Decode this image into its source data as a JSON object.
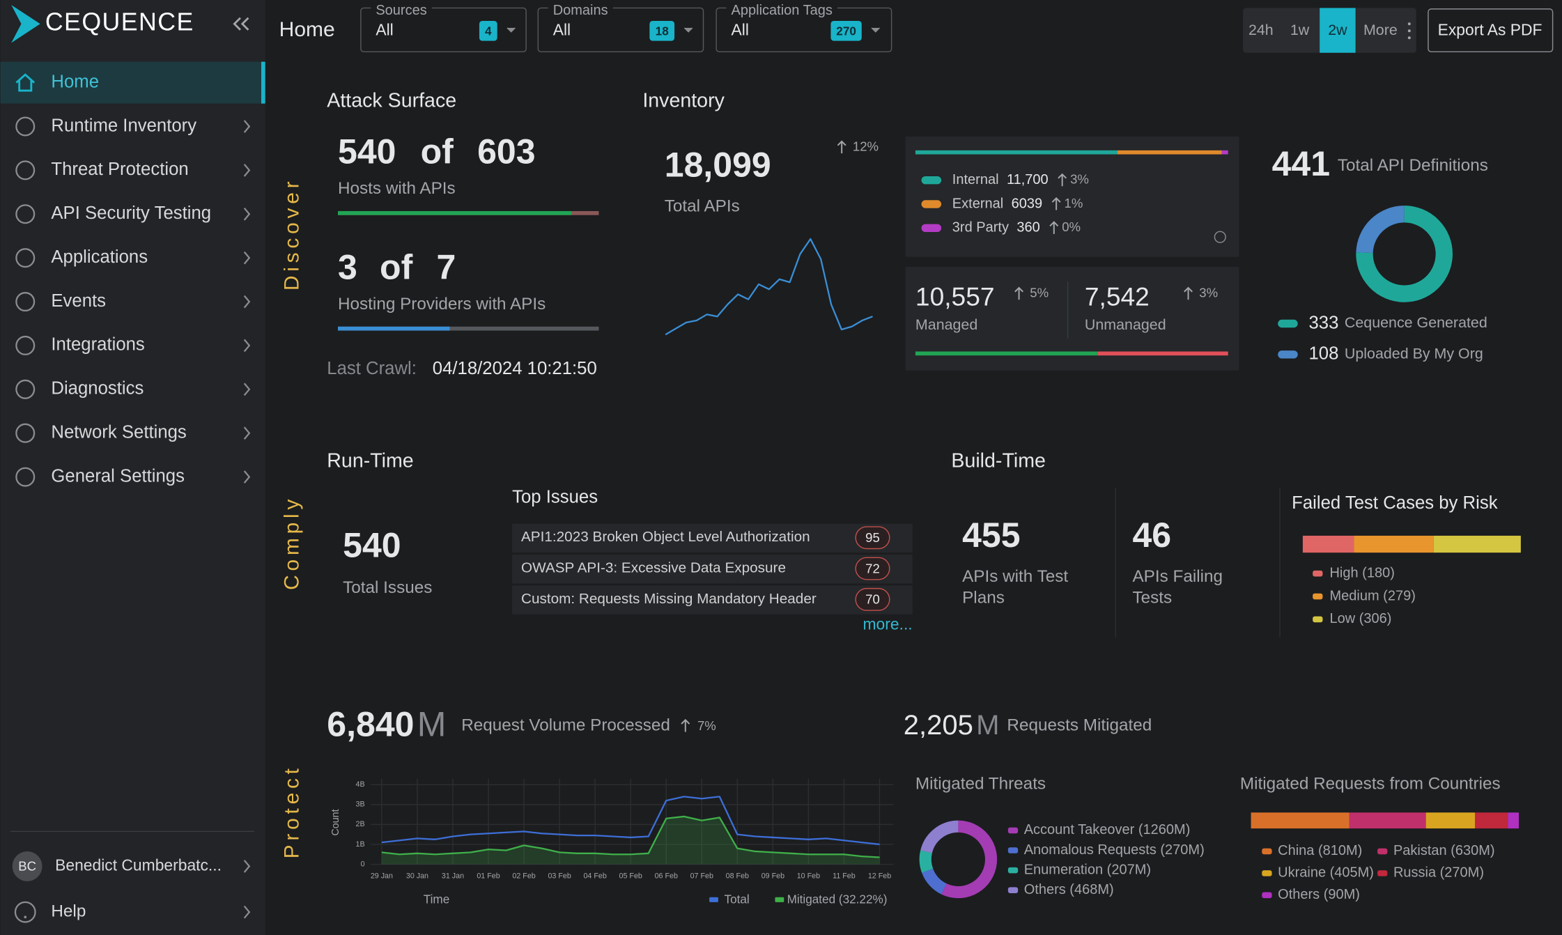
{
  "sidebar": {
    "brand": "CEQUENCE",
    "nav": [
      "Home",
      "Runtime Inventory",
      "Threat Protection",
      "API Security Testing",
      "Applications",
      "Events",
      "Integrations",
      "Diagnostics",
      "Network Settings",
      "General Settings"
    ],
    "user": {
      "initials": "BC",
      "name": "Benedict Cumberbatc..."
    },
    "help": "Help"
  },
  "header": {
    "title": "Home",
    "filters": [
      {
        "label": "Sources",
        "value": "All",
        "count": 4
      },
      {
        "label": "Domains",
        "value": "All",
        "count": 18
      },
      {
        "label": "Application Tags",
        "value": "All",
        "count": 270
      }
    ],
    "ranges": [
      "24h",
      "1w",
      "2w",
      "More"
    ],
    "active_range": 2,
    "export": "Export As PDF"
  },
  "sections": [
    "Discover",
    "Comply",
    "Protect"
  ],
  "attack_surface": {
    "title": "Attack Surface",
    "hosts": 540,
    "of": "of",
    "hosts_total": 603,
    "hosts_label": "Hosts with APIs",
    "providers": 3,
    "providers_total": 7,
    "providers_label": "Hosting Providers with APIs",
    "last_crawl_label": "Last Crawl:",
    "last_crawl": "04/18/2024 10:21:50"
  },
  "inventory": {
    "title": "Inventory",
    "total": "18,099",
    "total_label": "Total APIs",
    "change": "12%"
  },
  "runtime": {
    "title": "Run-Time",
    "issues": 540,
    "issues_label": "Total Issues",
    "top_title": "Top Issues",
    "top_issues": [
      {
        "name": "API1:2023 Broken Object Level Authorization",
        "count": 95
      },
      {
        "name": "OWASP API-3: Excessive Data Exposure",
        "count": 72
      },
      {
        "name": "Custom: Requests Missing Mandatory Header",
        "count": 70
      }
    ],
    "more": "more..."
  },
  "buildtime": {
    "title": "Build-Time",
    "test_plans": 455,
    "test_plans_label": "APIs with Test Plans",
    "failing": 46,
    "failing_label": "APIs Failing Tests"
  },
  "protect": {
    "volume": "6,840",
    "volume_unit": "M",
    "volume_label": "Request Volume Processed",
    "volume_change": "7%",
    "mitigated": "2,205",
    "mitigated_unit": "M",
    "mitigated_label": "Requests Mitigated"
  },
  "chart_data": [
    {
      "type": "line",
      "color": "#3a8fd6",
      "values": [
        0,
        6,
        12,
        14,
        20,
        18,
        30,
        40,
        35,
        50,
        45,
        55,
        52,
        80,
        95,
        75,
        30,
        5,
        8,
        14,
        18
      ]
    },
    {
      "type": "bar",
      "categories": [
        "Internal",
        "External",
        "3rd Party"
      ],
      "values": [
        11700,
        6039,
        360
      ],
      "value_labels": [
        "11,700",
        "6039",
        "360"
      ],
      "changes": [
        "3%",
        "1%",
        "0%"
      ],
      "colors": [
        "#1fa89a",
        "#e08a2c",
        "#b23cc4"
      ]
    },
    {
      "type": "bar",
      "categories": [
        "Managed",
        "Unmanaged"
      ],
      "values": [
        10557,
        7542
      ],
      "value_labels": [
        "10,557",
        "7,542"
      ],
      "changes": [
        "5%",
        "3%"
      ],
      "colors": [
        "#21a454",
        "#e0505a"
      ]
    },
    {
      "type": "donut",
      "title": "Total API Definitions",
      "total": 441,
      "categories": [
        "Cequence Generated",
        "Uploaded By My Org"
      ],
      "values": [
        333,
        108
      ],
      "colors": [
        "#1fa89a",
        "#4a86c8"
      ]
    },
    {
      "type": "bar",
      "title": "Failed Test Cases by Risk",
      "categories": [
        "High (180)",
        "Medium (279)",
        "Low (306)"
      ],
      "values": [
        180,
        279,
        306
      ],
      "colors": [
        "#e06666",
        "#e8952e",
        "#d4c640"
      ]
    },
    {
      "type": "line",
      "ylabel": "Count",
      "xlabel": "Time",
      "categories": [
        "29 Jan",
        null,
        "30 Jan",
        null,
        "31 Jan",
        null,
        "01 Feb",
        null,
        "02 Feb",
        null,
        "03 Feb",
        null,
        "04 Feb",
        null,
        "05 Feb",
        null,
        "06 Feb",
        null,
        "07 Feb",
        null,
        "08 Feb",
        null,
        "09 Feb",
        null,
        "10 Feb",
        null,
        "11 Feb",
        null,
        "12 Feb"
      ],
      "ylim": [
        0,
        4000000000
      ],
      "yticks": [
        0,
        {
          "value": 1000000000,
          "label": "1B"
        },
        {
          "value": 2000000000,
          "label": "2B"
        },
        {
          "value": 3000000000,
          "label": "3B"
        },
        {
          "value": 4000000000,
          "label": "4B"
        }
      ],
      "grid": true,
      "series": [
        {
          "name": "Total",
          "color": "#3d6fd8",
          "values": [
            1100000000,
            1200000000,
            1300000000,
            1250000000,
            1400000000,
            1500000000,
            1550000000,
            1600000000,
            1650000000,
            1550000000,
            1500000000,
            1450000000,
            1450000000,
            1400000000,
            1350000000,
            1400000000,
            3200000000,
            3400000000,
            3300000000,
            3400000000,
            1500000000,
            1400000000,
            1350000000,
            1300000000,
            1250000000,
            1300000000,
            1200000000,
            1100000000,
            1000000000
          ]
        },
        {
          "name": "Mitigated (32.22%)",
          "color": "#3fb04a",
          "values": [
            600000000,
            500000000,
            550000000,
            500000000,
            550000000,
            600000000,
            750000000,
            700000000,
            950000000,
            800000000,
            600000000,
            550000000,
            550000000,
            500000000,
            500000000,
            550000000,
            2300000000,
            2400000000,
            2200000000,
            2350000000,
            800000000,
            650000000,
            600000000,
            550000000,
            500000000,
            500000000,
            500000000,
            400000000,
            350000000
          ]
        }
      ]
    },
    {
      "type": "donut",
      "title": "Mitigated Threats",
      "categories": [
        "Account Takeover (1260M)",
        "Anomalous Requests (270M)",
        "Enumeration (207M)",
        "Others (468M)"
      ],
      "values": [
        1260,
        270,
        207,
        468
      ],
      "colors": [
        "#a43cb4",
        "#4e6fd0",
        "#2ab0a0",
        "#8e7fcf"
      ]
    },
    {
      "type": "bar",
      "title": "Mitigated Requests from Countries",
      "categories": [
        "China (810M)",
        "Pakistan (630M)",
        "Ukraine (405M)",
        "Russia (270M)",
        "Others (90M)"
      ],
      "values": [
        810,
        630,
        405,
        270,
        90
      ],
      "colors": [
        "#d9702a",
        "#c0306a",
        "#d9a520",
        "#c0283c",
        "#b030c0"
      ]
    }
  ]
}
